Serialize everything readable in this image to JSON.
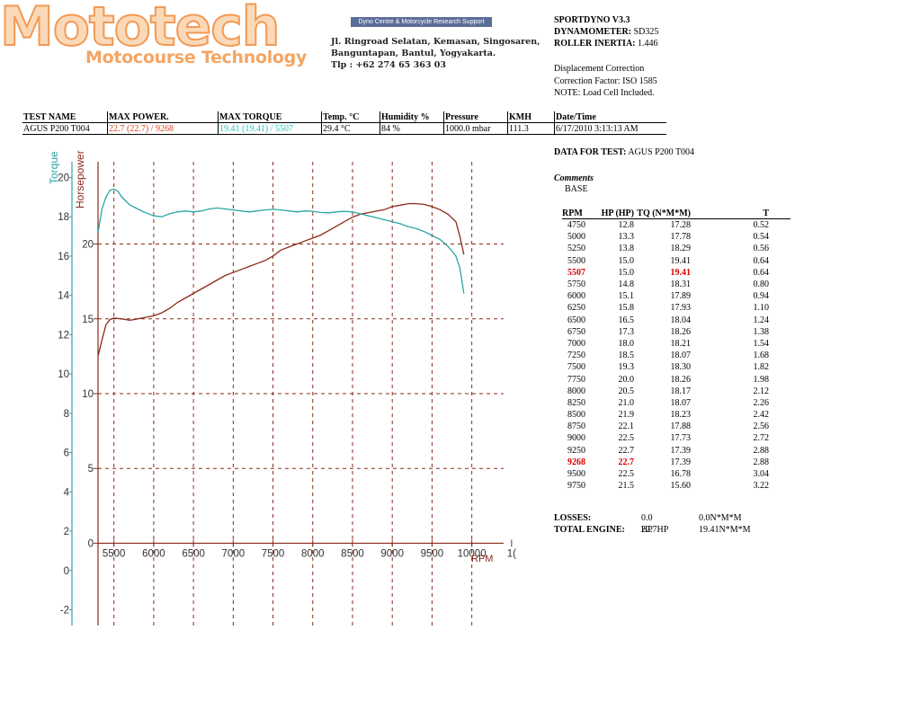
{
  "header": {
    "logo_text": "Mototech",
    "logo_subtitle": "Motocourse Technology",
    "banner_text": "Dyno Centre & Motorcycle Research Support",
    "address_lines": [
      "Jl. Ringroad Selatan, Kemasan, Singosaren,",
      "Banguntapan, Bantul, Yogyakarta.",
      "Tlp : +62 274 65 363 03"
    ]
  },
  "dyno_info": {
    "software": "SPORTDYNO V3.3",
    "dynamometer_label": "DYNAMOMETER:",
    "dynamometer_value": "SD325",
    "inertia_label": "ROLLER INERTIA:",
    "inertia_value": "1.446",
    "correction_lines": [
      "Displacement Correction",
      "Correction Factor: ISO 1585",
      "NOTE: Load Cell Included."
    ]
  },
  "summary": {
    "headers": [
      "TEST NAME",
      "MAX POWER.",
      "MAX TORQUE",
      "Temp. °C",
      "Humidity %",
      "Pressure",
      "KMH",
      "Date/Time"
    ],
    "row": [
      "AGUS P200 T004",
      "22.7 (22.7) / 9268",
      "19.41 (19.41) / 5507",
      "29.4 °C",
      "84 %",
      "1000.0 mbar",
      "111.3",
      "6/17/2010 3:13:13 AM"
    ]
  },
  "test_info": {
    "data_label": "DATA FOR TEST:",
    "test_name": "AGUS P200 T004",
    "comments_label": "Comments",
    "comments_value": "BASE"
  },
  "data_table": {
    "headers": [
      "RPM",
      "HP (HP)",
      "TQ (N*M*M)",
      "T"
    ],
    "rows": [
      [
        "4750",
        "12.8",
        "17.28",
        "0.52"
      ],
      [
        "5000",
        "13.3",
        "17.78",
        "0.54"
      ],
      [
        "5250",
        "13.8",
        "18.29",
        "0.56"
      ],
      [
        "5500",
        "15.0",
        "19.41",
        "0.64"
      ],
      [
        "5507",
        "15.0",
        "19.41",
        "0.64"
      ],
      [
        "5750",
        "14.8",
        "18.31",
        "0.80"
      ],
      [
        "6000",
        "15.1",
        "17.89",
        "0.94"
      ],
      [
        "6250",
        "15.8",
        "17.93",
        "1.10"
      ],
      [
        "6500",
        "16.5",
        "18.04",
        "1.24"
      ],
      [
        "6750",
        "17.3",
        "18.26",
        "1.38"
      ],
      [
        "7000",
        "18.0",
        "18.21",
        "1.54"
      ],
      [
        "7250",
        "18.5",
        "18.07",
        "1.68"
      ],
      [
        "7500",
        "19.3",
        "18.30",
        "1.82"
      ],
      [
        "7750",
        "20.0",
        "18.26",
        "1.98"
      ],
      [
        "8000",
        "20.5",
        "18.17",
        "2.12"
      ],
      [
        "8250",
        "21.0",
        "18.07",
        "2.26"
      ],
      [
        "8500",
        "21.9",
        "18.23",
        "2.42"
      ],
      [
        "8750",
        "22.1",
        "17.88",
        "2.56"
      ],
      [
        "9000",
        "22.5",
        "17.73",
        "2.72"
      ],
      [
        "9250",
        "22.7",
        "17.39",
        "2.88"
      ],
      [
        "9268",
        "22.7",
        "17.39",
        "2.88"
      ],
      [
        "9500",
        "22.5",
        "16.78",
        "3.04"
      ],
      [
        "9750",
        "21.5",
        "15.60",
        "3.22"
      ]
    ],
    "highlight_rows": [
      4,
      20
    ],
    "highlight_cols": {
      "4": [
        0,
        2
      ],
      "20": [
        0,
        1
      ]
    }
  },
  "totals": {
    "losses_label": "LOSSES:",
    "losses_hp": "0.0 HP",
    "losses_tq": "0.0N*M*M",
    "total_label": "TOTAL ENGINE:",
    "total_hp": "22.7HP",
    "total_tq": "19.41N*M*M"
  },
  "colors": {
    "power": "#8b2a1a",
    "torque": "#2aa5a5",
    "max_power_text": "#d9421b",
    "max_torque_text": "#27c3c3",
    "highlight": "#d40000"
  },
  "chart_data": {
    "type": "line",
    "xlabel": "RPM",
    "torque_axis_label": "Torque",
    "power_axis_label": "Horsepower",
    "x_ticks": [
      "5500",
      "6000",
      "6500",
      "7000",
      "7500",
      "8000",
      "8500",
      "9000",
      "9500",
      "10000",
      "1("
    ],
    "torque_ticks": [
      "20",
      "18",
      "16",
      "14",
      "12",
      "10",
      "8",
      "6",
      "4",
      "2",
      "0",
      "-2"
    ],
    "power_ticks": [
      "20",
      "15",
      "10",
      "5",
      "0"
    ],
    "xlim": [
      5300,
      10400
    ],
    "torque_ylim": [
      -2.8,
      20.8
    ],
    "power_ylim": [
      -5.5,
      25.5
    ],
    "series": [
      {
        "name": "Horsepower",
        "axis": "power",
        "x": [
          5300,
          5350,
          5400,
          5450,
          5500,
          5600,
          5700,
          5800,
          5900,
          6000,
          6100,
          6200,
          6300,
          6400,
          6500,
          6600,
          6700,
          6800,
          6900,
          7000,
          7100,
          7200,
          7300,
          7400,
          7500,
          7600,
          7700,
          7800,
          7900,
          8000,
          8100,
          8200,
          8300,
          8400,
          8500,
          8600,
          8700,
          8800,
          8900,
          9000,
          9100,
          9200,
          9300,
          9400,
          9500,
          9600,
          9700,
          9800,
          9850,
          9900
        ],
        "y": [
          12.5,
          13.6,
          14.6,
          14.95,
          15.05,
          15.0,
          14.9,
          15.0,
          15.1,
          15.2,
          15.4,
          15.7,
          16.1,
          16.4,
          16.7,
          17.0,
          17.3,
          17.6,
          17.9,
          18.1,
          18.3,
          18.5,
          18.7,
          18.9,
          19.2,
          19.6,
          19.8,
          20.0,
          20.2,
          20.4,
          20.6,
          20.9,
          21.2,
          21.5,
          21.8,
          22.0,
          22.1,
          22.2,
          22.3,
          22.5,
          22.6,
          22.7,
          22.7,
          22.65,
          22.5,
          22.3,
          22.0,
          21.5,
          20.5,
          19.3
        ]
      },
      {
        "name": "Torque",
        "axis": "torque",
        "x": [
          5300,
          5350,
          5400,
          5450,
          5500,
          5550,
          5600,
          5700,
          5800,
          5900,
          6000,
          6100,
          6200,
          6300,
          6400,
          6500,
          6600,
          6700,
          6800,
          6900,
          7000,
          7100,
          7200,
          7300,
          7400,
          7500,
          7600,
          7700,
          7800,
          7900,
          8000,
          8100,
          8200,
          8300,
          8400,
          8500,
          8600,
          8700,
          8800,
          8900,
          9000,
          9100,
          9200,
          9300,
          9400,
          9500,
          9600,
          9700,
          9800,
          9850,
          9900
        ],
        "y": [
          17.2,
          18.4,
          19.0,
          19.35,
          19.41,
          19.3,
          19.0,
          18.6,
          18.4,
          18.2,
          18.05,
          18.0,
          18.15,
          18.25,
          18.3,
          18.25,
          18.3,
          18.4,
          18.45,
          18.4,
          18.35,
          18.3,
          18.25,
          18.3,
          18.35,
          18.38,
          18.35,
          18.3,
          18.25,
          18.3,
          18.28,
          18.22,
          18.2,
          18.25,
          18.28,
          18.25,
          18.15,
          18.05,
          17.95,
          17.85,
          17.75,
          17.65,
          17.5,
          17.4,
          17.25,
          17.05,
          16.85,
          16.5,
          16.0,
          15.4,
          14.1
        ]
      }
    ],
    "grid": true
  }
}
